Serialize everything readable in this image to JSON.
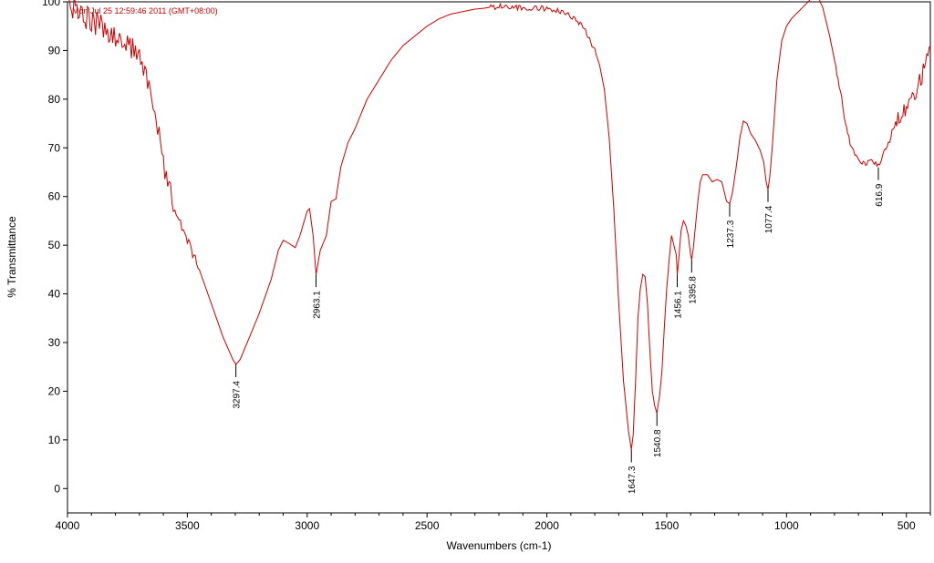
{
  "chart_data": {
    "type": "line",
    "title": "",
    "timestamp": "Mon Jul 25 12:59:46 2011 (GMT+08:00)",
    "xlabel": "Wavenumbers (cm-1)",
    "ylabel": "% Transmittance",
    "xlim": [
      4000,
      400
    ],
    "ylim": [
      -5,
      100
    ],
    "x_reversed": true,
    "grid": false,
    "line_color": "#cc0000",
    "xticks": [
      4000,
      3500,
      3000,
      2500,
      2000,
      1500,
      1000,
      500
    ],
    "yticks": [
      0,
      10,
      20,
      30,
      40,
      50,
      60,
      70,
      80,
      90,
      100
    ],
    "series": [
      {
        "name": "",
        "points": [
          [
            4000,
            100
          ],
          [
            3950,
            98
          ],
          [
            3900,
            96
          ],
          [
            3850,
            95
          ],
          [
            3800,
            93
          ],
          [
            3750,
            91
          ],
          [
            3700,
            89
          ],
          [
            3660,
            83
          ],
          [
            3630,
            76
          ],
          [
            3600,
            67
          ],
          [
            3570,
            61
          ],
          [
            3540,
            56
          ],
          [
            3500,
            51
          ],
          [
            3450,
            45
          ],
          [
            3400,
            38
          ],
          [
            3350,
            31
          ],
          [
            3310,
            26.5
          ],
          [
            3297.4,
            25.5
          ],
          [
            3280,
            26.5
          ],
          [
            3250,
            30
          ],
          [
            3200,
            36
          ],
          [
            3150,
            43
          ],
          [
            3120,
            49
          ],
          [
            3100,
            51
          ],
          [
            3080,
            50.5
          ],
          [
            3050,
            49.5
          ],
          [
            3030,
            52
          ],
          [
            3000,
            57
          ],
          [
            2990,
            57.5
          ],
          [
            2975,
            52
          ],
          [
            2963.1,
            44
          ],
          [
            2945,
            49
          ],
          [
            2920,
            52
          ],
          [
            2900,
            59
          ],
          [
            2880,
            59.5
          ],
          [
            2860,
            66
          ],
          [
            2830,
            71
          ],
          [
            2800,
            74
          ],
          [
            2750,
            80
          ],
          [
            2700,
            84
          ],
          [
            2650,
            88
          ],
          [
            2600,
            91
          ],
          [
            2550,
            93
          ],
          [
            2500,
            95
          ],
          [
            2450,
            96.5
          ],
          [
            2400,
            97.5
          ],
          [
            2300,
            98.5
          ],
          [
            2200,
            99
          ],
          [
            2100,
            98.8
          ],
          [
            2000,
            98.6
          ],
          [
            1950,
            98
          ],
          [
            1900,
            97
          ],
          [
            1850,
            95
          ],
          [
            1800,
            90
          ],
          [
            1780,
            87
          ],
          [
            1760,
            82
          ],
          [
            1740,
            72
          ],
          [
            1720,
            57
          ],
          [
            1700,
            38
          ],
          [
            1680,
            22
          ],
          [
            1660,
            12
          ],
          [
            1647.3,
            8
          ],
          [
            1640,
            11
          ],
          [
            1630,
            22
          ],
          [
            1620,
            35
          ],
          [
            1610,
            41
          ],
          [
            1600,
            44
          ],
          [
            1590,
            43.5
          ],
          [
            1580,
            38
          ],
          [
            1570,
            28
          ],
          [
            1560,
            20
          ],
          [
            1550,
            17
          ],
          [
            1540.8,
            15.5
          ],
          [
            1530,
            19
          ],
          [
            1520,
            24
          ],
          [
            1510,
            33
          ],
          [
            1500,
            41
          ],
          [
            1490,
            47
          ],
          [
            1480,
            52
          ],
          [
            1470,
            50
          ],
          [
            1460,
            48
          ],
          [
            1456.1,
            44
          ],
          [
            1450,
            47
          ],
          [
            1440,
            53
          ],
          [
            1430,
            55
          ],
          [
            1420,
            54
          ],
          [
            1410,
            52
          ],
          [
            1400,
            48
          ],
          [
            1395.8,
            47
          ],
          [
            1390,
            49
          ],
          [
            1380,
            54
          ],
          [
            1370,
            59
          ],
          [
            1360,
            63
          ],
          [
            1350,
            64.5
          ],
          [
            1330,
            64.5
          ],
          [
            1310,
            63
          ],
          [
            1290,
            63.5
          ],
          [
            1270,
            63
          ],
          [
            1260,
            61
          ],
          [
            1250,
            59
          ],
          [
            1237.3,
            58.5
          ],
          [
            1225,
            61
          ],
          [
            1210,
            66
          ],
          [
            1195,
            72
          ],
          [
            1180,
            75.5
          ],
          [
            1165,
            75
          ],
          [
            1150,
            73
          ],
          [
            1130,
            71.5
          ],
          [
            1110,
            69.5
          ],
          [
            1095,
            67
          ],
          [
            1085,
            63
          ],
          [
            1077.4,
            61.5
          ],
          [
            1070,
            64
          ],
          [
            1060,
            70
          ],
          [
            1050,
            77
          ],
          [
            1040,
            84
          ],
          [
            1030,
            88
          ],
          [
            1020,
            92
          ],
          [
            1000,
            95
          ],
          [
            980,
            96.5
          ],
          [
            960,
            97.5
          ],
          [
            940,
            98.5
          ],
          [
            920,
            99.5
          ],
          [
            900,
            100.5
          ],
          [
            880,
            101
          ],
          [
            870,
            102
          ],
          [
            860,
            100
          ],
          [
            850,
            99
          ],
          [
            840,
            97
          ],
          [
            820,
            93
          ],
          [
            800,
            88
          ],
          [
            780,
            83
          ],
          [
            760,
            77
          ],
          [
            740,
            72
          ],
          [
            720,
            69
          ],
          [
            700,
            67
          ],
          [
            680,
            66.5
          ],
          [
            660,
            67
          ],
          [
            640,
            67.5
          ],
          [
            616.9,
            66
          ],
          [
            600,
            68
          ],
          [
            580,
            70.5
          ],
          [
            560,
            73
          ],
          [
            540,
            75
          ],
          [
            520,
            76.5
          ],
          [
            500,
            78
          ],
          [
            480,
            79.5
          ],
          [
            460,
            81
          ],
          [
            440,
            84
          ],
          [
            420,
            88
          ],
          [
            400,
            91
          ]
        ]
      }
    ],
    "peak_labels": [
      {
        "x": 3297.4,
        "y": 25.5,
        "label": "3297.4"
      },
      {
        "x": 2963.1,
        "y": 44,
        "label": "2963.1"
      },
      {
        "x": 1647.3,
        "y": 8,
        "label": "1647.3"
      },
      {
        "x": 1540.8,
        "y": 15.5,
        "label": "1540.8"
      },
      {
        "x": 1456.1,
        "y": 44,
        "label": "1456.1"
      },
      {
        "x": 1395.8,
        "y": 47,
        "label": "1395.8"
      },
      {
        "x": 1237.3,
        "y": 58.5,
        "label": "1237.3"
      },
      {
        "x": 1077.4,
        "y": 61.5,
        "label": "1077.4"
      },
      {
        "x": 616.9,
        "y": 66,
        "label": "616.9"
      }
    ]
  }
}
